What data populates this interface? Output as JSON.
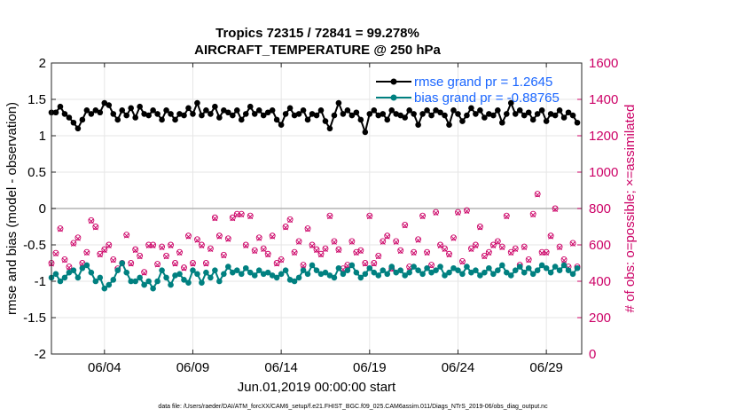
{
  "chart_data": {
    "type": "line",
    "title_line1": "Tropics 72315 / 72841 = 99.278%",
    "title_line2": "AIRCRAFT_TEMPERATURE @ 250 hPa",
    "xlabel": "Jun.01,2019 00:00:00 start",
    "ylabel_left": "rmse and bias (model - observation)",
    "ylabel_right": "# of obs: o=possible; ×=assimilated",
    "footnote": "data file: /Users/raeder/DAI/ATM_forcXX/CAM6_setup/f.e21.FHIST_BGC.f09_025.CAM6assim.011/Diags_NTrS_2019-06/obs_diag_output.nc",
    "ylim_left": [
      -2,
      2
    ],
    "ylim_right": [
      0,
      1600
    ],
    "xlim_days": [
      0,
      30
    ],
    "x_ticks": [
      {
        "day": 3,
        "label": "06/04"
      },
      {
        "day": 8,
        "label": "06/09"
      },
      {
        "day": 13,
        "label": "06/14"
      },
      {
        "day": 18,
        "label": "06/19"
      },
      {
        "day": 23,
        "label": "06/24"
      },
      {
        "day": 28,
        "label": "06/29"
      }
    ],
    "y_ticks_left": [
      {
        "value": 2,
        "label": "2"
      },
      {
        "value": 1.5,
        "label": "1.5"
      },
      {
        "value": 1,
        "label": "1"
      },
      {
        "value": 0.5,
        "label": "0.5"
      },
      {
        "value": 0,
        "label": "0"
      },
      {
        "value": -0.5,
        "label": "-0.5"
      },
      {
        "value": -1,
        "label": "-1"
      },
      {
        "value": -1.5,
        "label": "-1.5"
      },
      {
        "value": -2,
        "label": "-2"
      }
    ],
    "y_ticks_right": [
      {
        "value": 1600,
        "label": "1600"
      },
      {
        "value": 1400,
        "label": "1400"
      },
      {
        "value": 1200,
        "label": "1200"
      },
      {
        "value": 1000,
        "label": "1000"
      },
      {
        "value": 800,
        "label": "800"
      },
      {
        "value": 600,
        "label": "600"
      },
      {
        "value": 400,
        "label": "400"
      },
      {
        "value": 200,
        "label": "200"
      },
      {
        "value": 0,
        "label": "0"
      }
    ],
    "time_step_days": 0.25,
    "legend": [
      {
        "name": "rmse grand pr = 1.2645",
        "series": "rmse"
      },
      {
        "name": "bias grand pr = -0.88765",
        "series": "bias"
      }
    ],
    "series": [
      {
        "name": "rmse",
        "axis": "left",
        "color": "#000000",
        "values": [
          1.32,
          1.32,
          1.4,
          1.3,
          1.25,
          1.18,
          1.1,
          1.22,
          1.35,
          1.3,
          1.35,
          1.32,
          1.45,
          1.42,
          1.3,
          1.22,
          1.35,
          1.28,
          1.38,
          1.25,
          1.4,
          1.3,
          1.28,
          1.35,
          1.3,
          1.22,
          1.35,
          1.3,
          1.22,
          1.3,
          1.28,
          1.38,
          1.3,
          1.45,
          1.28,
          1.35,
          1.3,
          1.4,
          1.25,
          1.35,
          1.32,
          1.28,
          1.35,
          1.22,
          1.3,
          1.4,
          1.3,
          1.35,
          1.28,
          1.32,
          1.35,
          1.22,
          1.15,
          1.3,
          1.38,
          1.28,
          1.3,
          1.35,
          1.22,
          1.3,
          1.28,
          1.35,
          1.2,
          1.1,
          1.28,
          1.45,
          1.3,
          1.35,
          1.28,
          1.32,
          1.22,
          1.05,
          1.3,
          1.35,
          1.28,
          1.3,
          1.22,
          1.35,
          1.3,
          1.28,
          1.25,
          1.35,
          1.3,
          1.15,
          1.3,
          1.35,
          1.28,
          1.35,
          1.32,
          1.28,
          1.15,
          1.35,
          1.3,
          1.2,
          1.28,
          1.38,
          1.3,
          1.35,
          1.25,
          1.3,
          1.28,
          1.35,
          1.18,
          1.3,
          1.45,
          1.3,
          1.35,
          1.28,
          1.32,
          1.22,
          1.3,
          1.35,
          1.2,
          1.3,
          1.28,
          1.35,
          1.25,
          1.32,
          1.28,
          1.18
        ]
      },
      {
        "name": "bias",
        "axis": "left",
        "color": "#008080",
        "values": [
          -0.95,
          -0.9,
          -1.0,
          -0.95,
          -0.88,
          -0.85,
          -0.95,
          -0.82,
          -0.78,
          -0.88,
          -1.0,
          -0.95,
          -1.1,
          -1.05,
          -0.98,
          -0.85,
          -0.75,
          -0.88,
          -1.0,
          -1.0,
          -0.95,
          -1.05,
          -1.0,
          -1.1,
          -1.0,
          -0.85,
          -0.95,
          -1.05,
          -0.92,
          -0.9,
          -0.98,
          -1.02,
          -0.85,
          -0.9,
          -1.02,
          -0.88,
          -0.95,
          -0.85,
          -1.0,
          -0.9,
          -0.8,
          -0.88,
          -0.85,
          -0.9,
          -0.82,
          -0.88,
          -0.92,
          -0.85,
          -0.9,
          -0.88,
          -0.92,
          -0.95,
          -0.9,
          -0.85,
          -0.98,
          -1.0,
          -0.95,
          -0.85,
          -0.9,
          -0.78,
          -0.85,
          -0.9,
          -0.88,
          -0.92,
          -0.95,
          -0.82,
          -0.9,
          -0.85,
          -0.78,
          -0.88,
          -0.95,
          -0.9,
          -0.82,
          -0.88,
          -0.92,
          -0.85,
          -0.9,
          -0.8,
          -0.88,
          -0.85,
          -0.92,
          -0.88,
          -0.8,
          -0.85,
          -0.9,
          -0.82,
          -0.88,
          -0.85,
          -0.8,
          -0.92,
          -0.88,
          -0.82,
          -0.85,
          -0.9,
          -0.8,
          -0.88,
          -0.85,
          -0.92,
          -0.88,
          -0.82,
          -0.9,
          -0.85,
          -0.78,
          -0.88,
          -0.92,
          -0.85,
          -0.8,
          -0.88,
          -0.82,
          -0.9,
          -0.85,
          -0.78,
          -0.82,
          -0.88,
          -0.8,
          -0.85,
          -0.78,
          -0.85,
          -0.9,
          -0.82
        ]
      },
      {
        "name": "obs_possible",
        "axis": "right",
        "color": "#cc0066",
        "marker": "o",
        "values": [
          500,
          555,
          690,
          520,
          480,
          610,
          640,
          500,
          560,
          735,
          700,
          550,
          575,
          600,
          520,
          470,
          500,
          655,
          500,
          575,
          540,
          450,
          600,
          600,
          495,
          590,
          540,
          600,
          500,
          560,
          475,
          650,
          500,
          630,
          600,
          500,
          580,
          750,
          650,
          545,
          635,
          750,
          770,
          770,
          600,
          760,
          570,
          640,
          580,
          550,
          650,
          500,
          520,
          700,
          740,
          560,
          620,
          490,
          690,
          600,
          575,
          550,
          580,
          760,
          620,
          575,
          470,
          490,
          620,
          560,
          570,
          500,
          760,
          500,
          540,
          620,
          650,
          470,
          620,
          570,
          710,
          480,
          560,
          630,
          760,
          560,
          490,
          780,
          600,
          580,
          550,
          640,
          780,
          510,
          790,
          580,
          600,
          700,
          540,
          560,
          600,
          620,
          590,
          760,
          560,
          580,
          490,
          590,
          520,
          770,
          880,
          560,
          560,
          650,
          800,
          590,
          520,
          480,
          610,
          480
        ]
      },
      {
        "name": "obs_assimilated",
        "axis": "right",
        "color": "#cc0066",
        "marker": "x",
        "values": [
          495,
          550,
          685,
          515,
          475,
          605,
          635,
          495,
          555,
          730,
          695,
          545,
          570,
          595,
          515,
          465,
          495,
          650,
          495,
          570,
          535,
          445,
          595,
          595,
          490,
          585,
          535,
          595,
          495,
          555,
          470,
          645,
          495,
          625,
          595,
          495,
          575,
          745,
          645,
          540,
          630,
          745,
          765,
          765,
          595,
          755,
          565,
          635,
          575,
          545,
          645,
          495,
          515,
          695,
          735,
          555,
          615,
          485,
          685,
          595,
          570,
          545,
          575,
          755,
          615,
          570,
          465,
          485,
          615,
          555,
          565,
          495,
          755,
          495,
          535,
          615,
          645,
          465,
          615,
          565,
          705,
          475,
          555,
          625,
          755,
          555,
          485,
          775,
          595,
          575,
          545,
          635,
          775,
          505,
          785,
          575,
          595,
          695,
          535,
          555,
          595,
          615,
          585,
          755,
          555,
          575,
          485,
          585,
          515,
          765,
          875,
          555,
          555,
          645,
          795,
          585,
          515,
          475,
          605,
          475
        ]
      }
    ],
    "grid": true
  }
}
